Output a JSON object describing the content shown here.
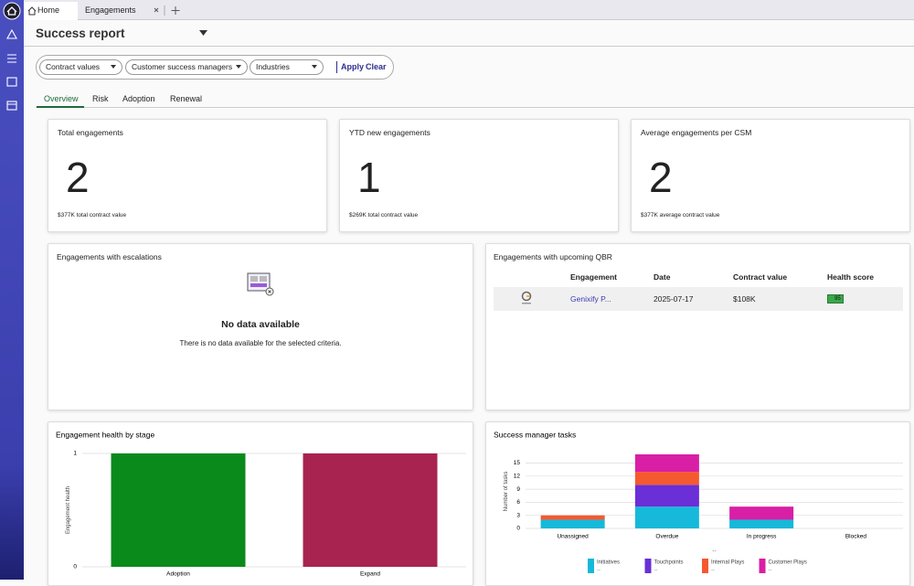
{
  "browser_tabs": [
    "Home",
    "Engagements"
  ],
  "header": {
    "title": "Success report"
  },
  "filters": [
    "Contract values",
    "Customer success managers",
    "Industries"
  ],
  "actions": [
    "Apply",
    "Clear"
  ],
  "tabs": [
    "Overview",
    "Risk",
    "Adoption",
    "Renewal"
  ],
  "kpis": [
    {
      "label": "Total engagements",
      "value": 2,
      "note": "$377K total contract value"
    },
    {
      "label": "YTD new engagements",
      "value": 1,
      "note": "$269K total contract value"
    },
    {
      "label": "Average engagements per CSM",
      "value": 2,
      "note": "$377K average contract value"
    }
  ],
  "escalations": {
    "title": "Engagements with escalations",
    "empty_title": "No data available",
    "empty_text": "There is no data available for the selected criteria."
  },
  "qbr": {
    "title": "Engagements with upcoming QBR",
    "columns": [
      "Engagement",
      "Date",
      "Contract value",
      "Health score"
    ],
    "rows": [
      [
        "Genixify P...",
        "2025-07-17",
        "$108K",
        "95"
      ]
    ]
  },
  "chart_data": [
    {
      "type": "bar",
      "title": "Engagement health by stage",
      "y_label": "Engagement health",
      "categories": [
        "Adoption",
        "Expand"
      ],
      "values": [
        1,
        1
      ],
      "colors": [
        "#0b8a1c",
        "#a8234f"
      ],
      "ylim": [
        0,
        1
      ],
      "yticks": [
        0,
        1
      ]
    },
    {
      "type": "stacked_bar",
      "title": "Success manager tasks",
      "y_label": "Number of tasks",
      "x_label": "--",
      "categories": [
        "Unassigned",
        "Overdue",
        "In progress",
        "Blocked"
      ],
      "series": [
        {
          "name": "Initiatives",
          "color": "#16b9d9",
          "values": [
            2,
            5,
            2,
            0
          ],
          "legend_note": "--"
        },
        {
          "name": "Touchpoints",
          "color": "#6a2fd6",
          "values": [
            0,
            5,
            0,
            0
          ],
          "legend_note": "--"
        },
        {
          "name": "Internal Plays",
          "color": "#f5592f",
          "values": [
            1,
            3,
            0,
            0
          ],
          "legend_note": "--"
        },
        {
          "name": "Customer Plays",
          "color": "#d81fa6",
          "values": [
            0,
            4,
            3,
            0
          ],
          "legend_note": "--"
        }
      ],
      "ylim": [
        0,
        17
      ],
      "yticks": [
        0,
        3,
        6,
        9,
        12,
        15
      ],
      "grid": true
    }
  ]
}
